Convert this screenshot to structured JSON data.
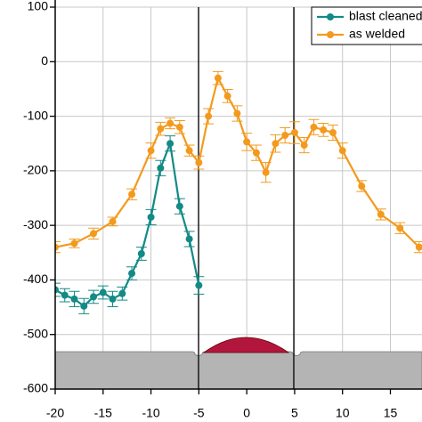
{
  "chart_data": {
    "type": "line",
    "legend": "top-right",
    "grid": true,
    "xlim": [
      -20,
      18.3
    ],
    "ylim": [
      -600,
      100
    ],
    "xticks": [
      -20,
      -15,
      -10,
      -5,
      0,
      5,
      10,
      15
    ],
    "yticks": [
      100,
      0,
      -100,
      -200,
      -300,
      -400,
      -500,
      -600
    ],
    "series": [
      {
        "name": "blast cleaned",
        "color": "#138a86",
        "x": [
          -20,
          -19,
          -18,
          -17,
          -16,
          -15,
          -14,
          -13,
          -12,
          -11,
          -10,
          -9,
          -8,
          -7,
          -6,
          -5
        ],
        "values": [
          -418,
          -428,
          -435,
          -448,
          -431,
          -423,
          -435,
          -425,
          -388,
          -352,
          -285,
          -195,
          -150,
          -265,
          -325,
          -410
        ],
        "errors": [
          12,
          12,
          14,
          14,
          12,
          12,
          14,
          12,
          12,
          12,
          14,
          14,
          14,
          14,
          14,
          16
        ]
      },
      {
        "name": "as welded",
        "color": "#f39a1e",
        "x": [
          -20,
          -18,
          -16,
          -14,
          -12,
          -10,
          -9,
          -8,
          -7,
          -6,
          -5,
          -4,
          -3,
          -2,
          -1,
          0,
          1,
          2,
          3,
          4,
          5,
          6,
          7,
          8,
          9,
          10,
          12,
          14,
          16,
          18
        ],
        "values": [
          -340,
          -333,
          -315,
          -293,
          -243,
          -163,
          -123,
          -113,
          -120,
          -163,
          -185,
          -100,
          -30,
          -63,
          -95,
          -147,
          -167,
          -203,
          -150,
          -135,
          -130,
          -153,
          -120,
          -125,
          -130,
          -163,
          -228,
          -280,
          -305,
          -340
        ],
        "errors": [
          10,
          8,
          10,
          8,
          10,
          14,
          12,
          10,
          12,
          10,
          12,
          14,
          12,
          12,
          14,
          16,
          14,
          18,
          16,
          14,
          20,
          14,
          14,
          12,
          14,
          14,
          10,
          10,
          10,
          10
        ]
      }
    ]
  }
}
